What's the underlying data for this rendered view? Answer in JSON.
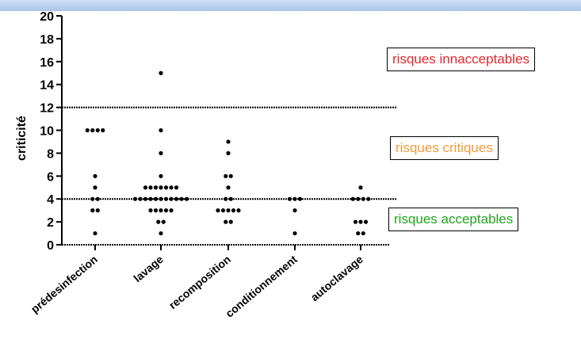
{
  "chart_data": {
    "type": "scatter",
    "ylabel": "criticité",
    "ylim": [
      0,
      20
    ],
    "yticks": [
      0,
      2,
      4,
      6,
      8,
      10,
      12,
      14,
      16,
      18,
      20
    ],
    "categories": [
      "prédesinfection",
      "lavage",
      "recomposition",
      "conditionnement",
      "autoclavage"
    ],
    "series": [
      {
        "category": "prédesinfection",
        "values": [
          10,
          10,
          10,
          10,
          6,
          5,
          4,
          4,
          3,
          3,
          1
        ]
      },
      {
        "category": "lavage",
        "values": [
          15,
          10,
          8,
          6,
          5,
          5,
          5,
          5,
          5,
          5,
          5,
          4,
          4,
          4,
          4,
          4,
          4,
          4,
          4,
          4,
          4,
          4,
          3,
          3,
          3,
          3,
          3,
          2,
          2,
          1
        ]
      },
      {
        "category": "recomposition",
        "values": [
          9,
          8,
          6,
          6,
          5,
          4,
          4,
          3,
          3,
          3,
          3,
          3,
          2,
          2
        ]
      },
      {
        "category": "conditionnement",
        "values": [
          4,
          4,
          4,
          3,
          1
        ]
      },
      {
        "category": "autoclavage",
        "values": [
          5,
          4,
          4,
          4,
          4,
          2,
          2,
          2,
          1,
          1
        ]
      }
    ],
    "reference_lines": [
      {
        "y": 12,
        "style": "dotted"
      },
      {
        "y": 4,
        "style": "dotted"
      }
    ],
    "zones": [
      {
        "label": "risques innacceptables",
        "color": "#e8262b"
      },
      {
        "label": "risques critiques",
        "color": "#f59a3a"
      },
      {
        "label": "risques acceptables",
        "color": "#1ea51e"
      }
    ]
  }
}
